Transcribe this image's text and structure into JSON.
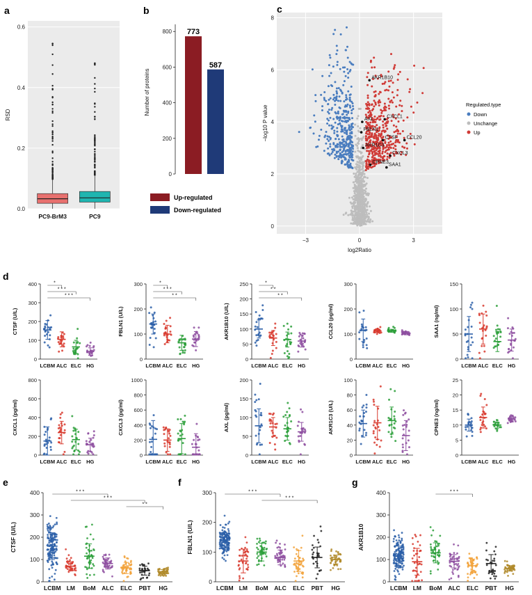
{
  "panels": {
    "a": {
      "label": "a",
      "type": "box",
      "ylabel": "RSD",
      "ylim": [
        0,
        0.62
      ],
      "yticks": [
        0.0,
        0.2,
        0.4,
        0.6
      ],
      "tick_labels": [
        "0.0",
        "0.2",
        "0.4",
        "0.6"
      ],
      "grid": true,
      "boxes": [
        {
          "name": "PC9-BrM3",
          "q1": 0.018,
          "median": 0.033,
          "q3": 0.05,
          "whisker_low": 0.0,
          "whisker_high": 0.098,
          "max": 0.545,
          "color": "#e8716f"
        },
        {
          "name": "PC9",
          "q1": 0.022,
          "median": 0.036,
          "q3": 0.057,
          "whisker_low": 0.0,
          "whisker_high": 0.112,
          "max": 0.48,
          "color": "#1fb5b0"
        }
      ]
    },
    "b": {
      "label": "b",
      "type": "bar",
      "ylabel": "Number of proteins",
      "ylim": [
        0,
        840
      ],
      "yticks": [
        0,
        200,
        400,
        600,
        800
      ],
      "tick_labels": [
        "0",
        "200",
        "400",
        "600",
        "800"
      ],
      "categories": [
        "Up-regulated",
        "Down-regulated"
      ],
      "values": [
        773,
        587
      ],
      "value_labels": [
        "773",
        "587"
      ],
      "colors": [
        "#8b1c23",
        "#1f3a78"
      ],
      "legend": [
        {
          "name": "Up-regulated",
          "color": "#8b1c23"
        },
        {
          "name": "Down-regulated",
          "color": "#1f3a78"
        }
      ]
    },
    "c": {
      "label": "c",
      "type": "scatter",
      "xlabel": "log2Ratio",
      "ylabel": "−log10 P value",
      "xlim": [
        -4.6,
        4.6
      ],
      "ylim": [
        -0.3,
        8.2
      ],
      "xticks": [
        -3,
        0,
        3
      ],
      "x_tick_labels": [
        "−3",
        "0",
        "3"
      ],
      "yticks": [
        0,
        2,
        4,
        6,
        8
      ],
      "y_tick_labels": [
        "0",
        "2",
        "4",
        "6",
        "8"
      ],
      "grid": true,
      "legend_title": "Regulated.type",
      "legend_position": "right",
      "legend": [
        {
          "name": "Down",
          "color": "#4a7dbf"
        },
        {
          "name": "Unchange",
          "color": "#bdbdbd"
        },
        {
          "name": "Up",
          "color": "#d03a36"
        }
      ],
      "annotations": [
        {
          "text": "AKR1B10",
          "x": 0.55,
          "y": 5.6
        },
        {
          "text": "AXL",
          "x": 0.15,
          "y": 4.0
        },
        {
          "text": "CXCL1",
          "x": 1.4,
          "y": 4.1
        },
        {
          "text": "FBLN1",
          "x": 0.1,
          "y": 3.6
        },
        {
          "text": "CTSF",
          "x": 1.3,
          "y": 3.3
        },
        {
          "text": "CCL20",
          "x": 2.5,
          "y": 3.3
        },
        {
          "text": "AKR1C3",
          "x": 0.2,
          "y": 3.0
        },
        {
          "text": "CXCL3",
          "x": 1.7,
          "y": 2.7
        },
        {
          "text": "CPNE3",
          "x": 0.6,
          "y": 2.35
        },
        {
          "text": "SAA1",
          "x": 1.5,
          "y": 2.25
        }
      ]
    },
    "d": {
      "label": "d",
      "type": "scatter",
      "groups": [
        "LCBM",
        "ALC",
        "ELC",
        "HG"
      ],
      "colors": [
        "#2b5fa8",
        "#d83a2e",
        "#2c9f3a",
        "#8e4fa0"
      ],
      "subplots": [
        {
          "ylabel": "CTSF (U/L)",
          "yticks": [
            0,
            100,
            200,
            300,
            400
          ],
          "ylim": [
            0,
            400
          ],
          "means": [
            155,
            105,
            65,
            40
          ],
          "sds": [
            50,
            40,
            35,
            20
          ],
          "significance": [
            {
              "from": 0,
              "to": 1,
              "text": "*"
            },
            {
              "from": 0,
              "to": 2,
              "text": "* * *"
            },
            {
              "from": 0,
              "to": 3,
              "text": "* * *"
            }
          ]
        },
        {
          "ylabel": "FBLN1 (U/L)",
          "yticks": [
            0,
            100,
            200,
            300
          ],
          "ylim": [
            0,
            300
          ],
          "means": [
            140,
            100,
            65,
            80
          ],
          "sds": [
            40,
            35,
            30,
            30
          ],
          "significance": [
            {
              "from": 0,
              "to": 1,
              "text": "*"
            },
            {
              "from": 0,
              "to": 2,
              "text": "* * *"
            },
            {
              "from": 0,
              "to": 3,
              "text": "* *"
            }
          ]
        },
        {
          "ylabel": "AKR1B10 (U/L)",
          "yticks": [
            0,
            50,
            100,
            150,
            200,
            250
          ],
          "ylim": [
            0,
            250
          ],
          "means": [
            100,
            70,
            65,
            60
          ],
          "sds": [
            30,
            25,
            25,
            20
          ],
          "significance": [
            {
              "from": 0,
              "to": 1,
              "text": "*"
            },
            {
              "from": 0,
              "to": 2,
              "text": "* *"
            },
            {
              "from": 0,
              "to": 3,
              "text": "* *"
            }
          ]
        },
        {
          "ylabel": "CCL20 (pg/ml)",
          "yticks": [
            0,
            100,
            200,
            300
          ],
          "ylim": [
            0,
            300
          ],
          "means": [
            115,
            113,
            113,
            103
          ],
          "sds": [
            45,
            6,
            6,
            6
          ],
          "significance": []
        },
        {
          "ylabel": "SAA1 (ng/ml)",
          "yticks": [
            0,
            50,
            100,
            150
          ],
          "ylim": [
            0,
            150
          ],
          "means": [
            50,
            60,
            35,
            38
          ],
          "sds": [
            35,
            30,
            20,
            22
          ],
          "significance": []
        },
        {
          "ylabel": "CXCL1 (pg/ml)",
          "yticks": [
            0,
            200,
            400,
            600,
            800
          ],
          "ylim": [
            0,
            800
          ],
          "means": [
            150,
            240,
            165,
            110
          ],
          "sds": [
            150,
            120,
            110,
            70
          ],
          "significance": []
        },
        {
          "ylabel": "CXCL3 (pg/ml)",
          "yticks": [
            0,
            200,
            400,
            600,
            800,
            1000
          ],
          "ylim": [
            0,
            1000
          ],
          "means": [
            210,
            200,
            220,
            105
          ],
          "sds": [
            250,
            150,
            200,
            180
          ],
          "significance": []
        },
        {
          "ylabel": "AXL (pg/ml)",
          "yticks": [
            0,
            50,
            100,
            150,
            200
          ],
          "ylim": [
            0,
            200
          ],
          "means": [
            78,
            75,
            70,
            62
          ],
          "sds": [
            45,
            25,
            30,
            25
          ],
          "significance": []
        },
        {
          "ylabel": "AKR1C3 (U/L)",
          "yticks": [
            0,
            20,
            40,
            60,
            80,
            100
          ],
          "ylim": [
            0,
            100
          ],
          "means": [
            42,
            43,
            46,
            26
          ],
          "sds": [
            18,
            22,
            18,
            20
          ],
          "significance": []
        },
        {
          "ylabel": "CPNE3 (ng/ml)",
          "yticks": [
            0,
            5,
            10,
            15,
            20,
            25
          ],
          "ylim": [
            0,
            25
          ],
          "means": [
            10,
            12.5,
            10,
            12
          ],
          "sds": [
            2,
            3.5,
            1,
            1
          ],
          "significance": []
        }
      ]
    },
    "e": {
      "label": "e",
      "type": "scatter",
      "ylabel": "CTSF (U/L)",
      "ylim": [
        0,
        400
      ],
      "yticks": [
        0,
        100,
        200,
        300,
        400
      ],
      "groups": [
        "LCBM",
        "LM",
        "BoM",
        "ALC",
        "ELC",
        "PBT",
        "HG"
      ],
      "colors": [
        "#2b5fa8",
        "#d83a2e",
        "#2c9f3a",
        "#8e4fa0",
        "#f2a23a",
        "#222222",
        "#b08a2a"
      ],
      "means": [
        160,
        70,
        115,
        82,
        62,
        50,
        45
      ],
      "sds": [
        60,
        20,
        55,
        25,
        25,
        20,
        10
      ],
      "significance": [
        {
          "from": 0,
          "to": 3,
          "text": "* * *"
        },
        {
          "from": 1,
          "to": 5,
          "text": "* * *"
        },
        {
          "from": 4,
          "to": 6,
          "text": "* *"
        }
      ]
    },
    "f": {
      "label": "f",
      "type": "scatter",
      "ylabel": "FBLN1 (U/L)",
      "ylim": [
        0,
        300
      ],
      "yticks": [
        0,
        100,
        200,
        300
      ],
      "groups": [
        "LCBM",
        "LM",
        "BoM",
        "ALC",
        "ELC",
        "PBT",
        "HG"
      ],
      "colors": [
        "#2b5fa8",
        "#d83a2e",
        "#2c9f3a",
        "#8e4fa0",
        "#f2a23a",
        "#222222",
        "#b08a2a"
      ],
      "means": [
        140,
        70,
        100,
        82,
        70,
        82,
        75
      ],
      "sds": [
        25,
        40,
        30,
        25,
        35,
        35,
        15
      ],
      "significance": [
        {
          "from": 0,
          "to": 3,
          "text": "* * *"
        },
        {
          "from": 2,
          "to": 5,
          "text": "* * *"
        }
      ]
    },
    "g": {
      "label": "g",
      "type": "scatter",
      "ylabel": "AKR1B10",
      "ylim": [
        0,
        400
      ],
      "yticks": [
        0,
        100,
        200,
        300,
        400
      ],
      "groups": [
        "LCBM",
        "LM",
        "BoM",
        "ALC",
        "ELC",
        "PBT",
        "HG"
      ],
      "colors": [
        "#2b5fa8",
        "#d83a2e",
        "#2c9f3a",
        "#8e4fa0",
        "#f2a23a",
        "#222222",
        "#b08a2a"
      ],
      "means": [
        115,
        90,
        130,
        92,
        72,
        82,
        60
      ],
      "sds": [
        45,
        60,
        45,
        30,
        30,
        40,
        12
      ],
      "significance": [
        {
          "from": 2,
          "to": 4,
          "text": "* * *"
        }
      ]
    }
  }
}
